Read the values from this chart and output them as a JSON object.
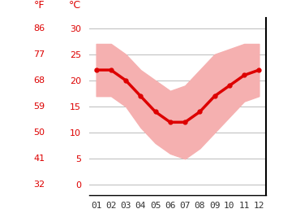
{
  "months": [
    1,
    2,
    3,
    4,
    5,
    6,
    7,
    8,
    9,
    10,
    11,
    12
  ],
  "month_labels": [
    "01",
    "02",
    "03",
    "04",
    "05",
    "06",
    "07",
    "08",
    "09",
    "10",
    "11",
    "12"
  ],
  "temp_mean": [
    22,
    22,
    20,
    17,
    14,
    12,
    12,
    14,
    17,
    19,
    21,
    22
  ],
  "temp_max": [
    27,
    27,
    25,
    22,
    20,
    18,
    19,
    22,
    25,
    26,
    27,
    27
  ],
  "temp_min": [
    17,
    17,
    15,
    11,
    8,
    6,
    5,
    7,
    10,
    13,
    16,
    17
  ],
  "y_ticks_c": [
    0,
    5,
    10,
    15,
    20,
    25,
    30
  ],
  "y_ticks_f": [
    32,
    41,
    50,
    59,
    68,
    77,
    86
  ],
  "ylim": [
    -2,
    32
  ],
  "xlim": [
    0.5,
    12.5
  ],
  "line_color": "#dd0000",
  "band_color": "#f5b0b0",
  "background_color": "#ffffff",
  "grid_color": "#bbbbbb",
  "label_color": "#dd0000",
  "tick_label_color": "#333333",
  "spine_color": "#000000",
  "tick_fontsize": 8,
  "label_fontsize": 9
}
